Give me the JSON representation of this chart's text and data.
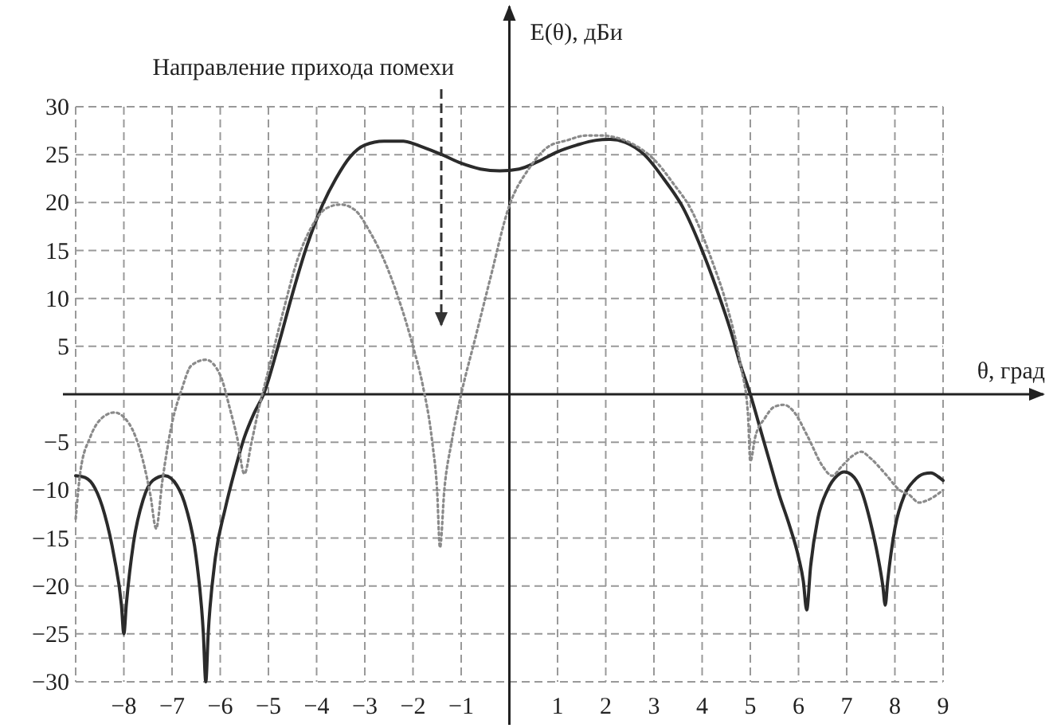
{
  "chart_data": {
    "type": "line",
    "xlabel": "θ, град",
    "ylabel": "E(θ), дБи",
    "annotations": [
      "Направление прихода помехи"
    ],
    "xlim": [
      -9,
      9
    ],
    "ylim": [
      -30,
      30
    ],
    "xticks": [
      {
        "value": -9,
        "label": null
      },
      -8,
      -7,
      -6,
      -5,
      -4,
      -3,
      -2,
      -1,
      {
        "value": 0,
        "label": null
      },
      1,
      2,
      3,
      4,
      5,
      6,
      7,
      8,
      9
    ],
    "yticks": [
      -30,
      -25,
      -20,
      -15,
      -10,
      -5,
      {
        "value": 0,
        "label": null
      },
      5,
      10,
      15,
      20,
      25,
      30
    ],
    "grid": true,
    "marker": "none",
    "series": [
      {
        "color": "#2b2b2b",
        "line_style": "solid",
        "x": [
          -9,
          -8.8,
          -8.6,
          -8.4,
          -8.2,
          -8.05,
          -8,
          -7.95,
          -7.8,
          -7.6,
          -7.4,
          -7.15,
          -6.9,
          -6.7,
          -6.5,
          -6.35,
          -6.3,
          -6.25,
          -6.1,
          -5.9,
          -5.7,
          -5.5,
          -5.3,
          -5.1,
          -4.8,
          -4.5,
          -4.2,
          -3.9,
          -3.6,
          -3.3,
          -3,
          -2.6,
          -2.2,
          -1.8,
          -1.4,
          -1,
          -0.6,
          -0.2,
          0.2,
          0.6,
          1,
          1.4,
          1.8,
          2.1,
          2.4,
          2.8,
          3.2,
          3.6,
          4,
          4.3,
          4.6,
          4.8,
          5,
          5.2,
          5.4,
          5.6,
          5.8,
          6,
          6.1,
          6.17,
          6.25,
          6.4,
          6.6,
          6.8,
          6.95,
          7.1,
          7.3,
          7.5,
          7.65,
          7.75,
          7.8,
          7.85,
          8,
          8.2,
          8.4,
          8.6,
          8.75,
          8.9,
          9
        ],
        "values": [
          -8.5,
          -8.7,
          -9.8,
          -12.5,
          -17,
          -22,
          -25,
          -22,
          -15.5,
          -11,
          -9,
          -8.5,
          -9.5,
          -12,
          -17,
          -25,
          -30,
          -25,
          -17,
          -12,
          -8,
          -4.5,
          -2,
          0,
          5,
          10.5,
          15.5,
          19.5,
          22.5,
          24.8,
          26,
          26.4,
          26.4,
          25.8,
          25,
          24.1,
          23.5,
          23.3,
          23.5,
          24.3,
          25.3,
          26,
          26.5,
          26.6,
          26.3,
          25,
          22.5,
          19.5,
          15,
          11,
          6.5,
          3,
          0,
          -3.5,
          -7,
          -10.5,
          -13.5,
          -17,
          -19.5,
          -22.5,
          -18,
          -13,
          -10,
          -8.5,
          -8.1,
          -8.4,
          -10,
          -13.5,
          -17,
          -20,
          -22,
          -19.5,
          -14,
          -10.5,
          -9,
          -8.3,
          -8.2,
          -8.6,
          -9
        ]
      },
      {
        "color": "#8a8a8a",
        "line_style": "dotted",
        "x": [
          -9,
          -8.9,
          -8.7,
          -8.5,
          -8.2,
          -7.9,
          -7.6,
          -7.45,
          -7.33,
          -7.2,
          -7,
          -6.8,
          -6.6,
          -6.3,
          -6,
          -5.8,
          -5.65,
          -5.5,
          -5.35,
          -5.2,
          -5,
          -4.7,
          -4.4,
          -4.1,
          -3.8,
          -3.5,
          -3.2,
          -2.9,
          -2.6,
          -2.3,
          -2,
          -1.8,
          -1.6,
          -1.5,
          -1.44,
          -1.35,
          -1.2,
          -1,
          -0.7,
          -0.4,
          0,
          0.4,
          0.8,
          1.2,
          1.6,
          1.9,
          2.2,
          2.6,
          3,
          3.4,
          3.8,
          4.2,
          4.5,
          4.8,
          4.95,
          5,
          5.1,
          5.3,
          5.5,
          5.7,
          5.9,
          6.2,
          6.5,
          6.7,
          6.9,
          7.1,
          7.3,
          7.5,
          7.8,
          8.1,
          8.3,
          8.5,
          8.7,
          9
        ],
        "values": [
          -13,
          -8,
          -4.5,
          -2.7,
          -1.9,
          -3,
          -7,
          -10.5,
          -14,
          -9,
          -3,
          0.5,
          3,
          3.6,
          2,
          -1.5,
          -4.5,
          -8.3,
          -5,
          -1.5,
          2.5,
          8.5,
          14,
          17.5,
          19.4,
          19.8,
          19.2,
          17,
          14,
          10,
          5,
          1,
          -5,
          -10,
          -16,
          -10,
          -5,
          0,
          6,
          12,
          19.7,
          23.5,
          25.8,
          26.5,
          27,
          27,
          26.8,
          26,
          24.5,
          22,
          19,
          14,
          9.5,
          3,
          -2,
          -7,
          -4.5,
          -2.5,
          -1.3,
          -1.1,
          -1.8,
          -4.5,
          -7.5,
          -8.5,
          -7.5,
          -6.5,
          -6,
          -6.7,
          -8.3,
          -10,
          -10.5,
          -11.3,
          -11,
          -10
        ]
      }
    ]
  }
}
